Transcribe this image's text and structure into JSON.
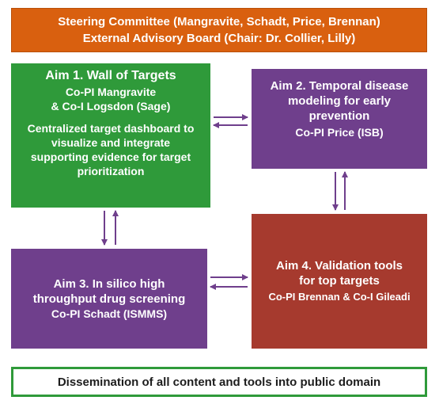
{
  "header": {
    "line1": "Steering Committee (Mangravite, Schadt, Price, Brennan)",
    "line2": "External Advisory Board (Chair: Dr. Collier, Lilly)"
  },
  "aim1": {
    "title": "Aim 1. Wall of Targets",
    "lead1": "Co-PI Mangravite",
    "lead2": "& Co-I Logsdon (Sage)",
    "desc1": "Centralized target dashboard to",
    "desc2": "visualize and integrate",
    "desc3": "supporting evidence for target",
    "desc4": "prioritization"
  },
  "aim2": {
    "title1": "Aim 2. Temporal disease",
    "title2": "modeling for early",
    "title3": "prevention",
    "lead": "Co-PI Price (ISB)"
  },
  "aim3": {
    "title1": "Aim 3. In silico high",
    "title2": "throughput drug screening",
    "lead": "Co-PI Schadt (ISMMS)"
  },
  "aim4": {
    "title1": "Aim 4. Validation tools",
    "title2": "for top targets",
    "lead": "Co-PI Brennan & Co-I Gileadi"
  },
  "footer": {
    "text": "Dissemination of all content and tools into public domain"
  },
  "colors": {
    "header": "#d9600f",
    "aim1": "#2f9a3a",
    "aim2": "#6f3f8c",
    "aim3": "#6f3f8c",
    "aim4": "#a63a2e",
    "arrows": "#6f3f8c",
    "footer_border": "#2f9a3a"
  }
}
